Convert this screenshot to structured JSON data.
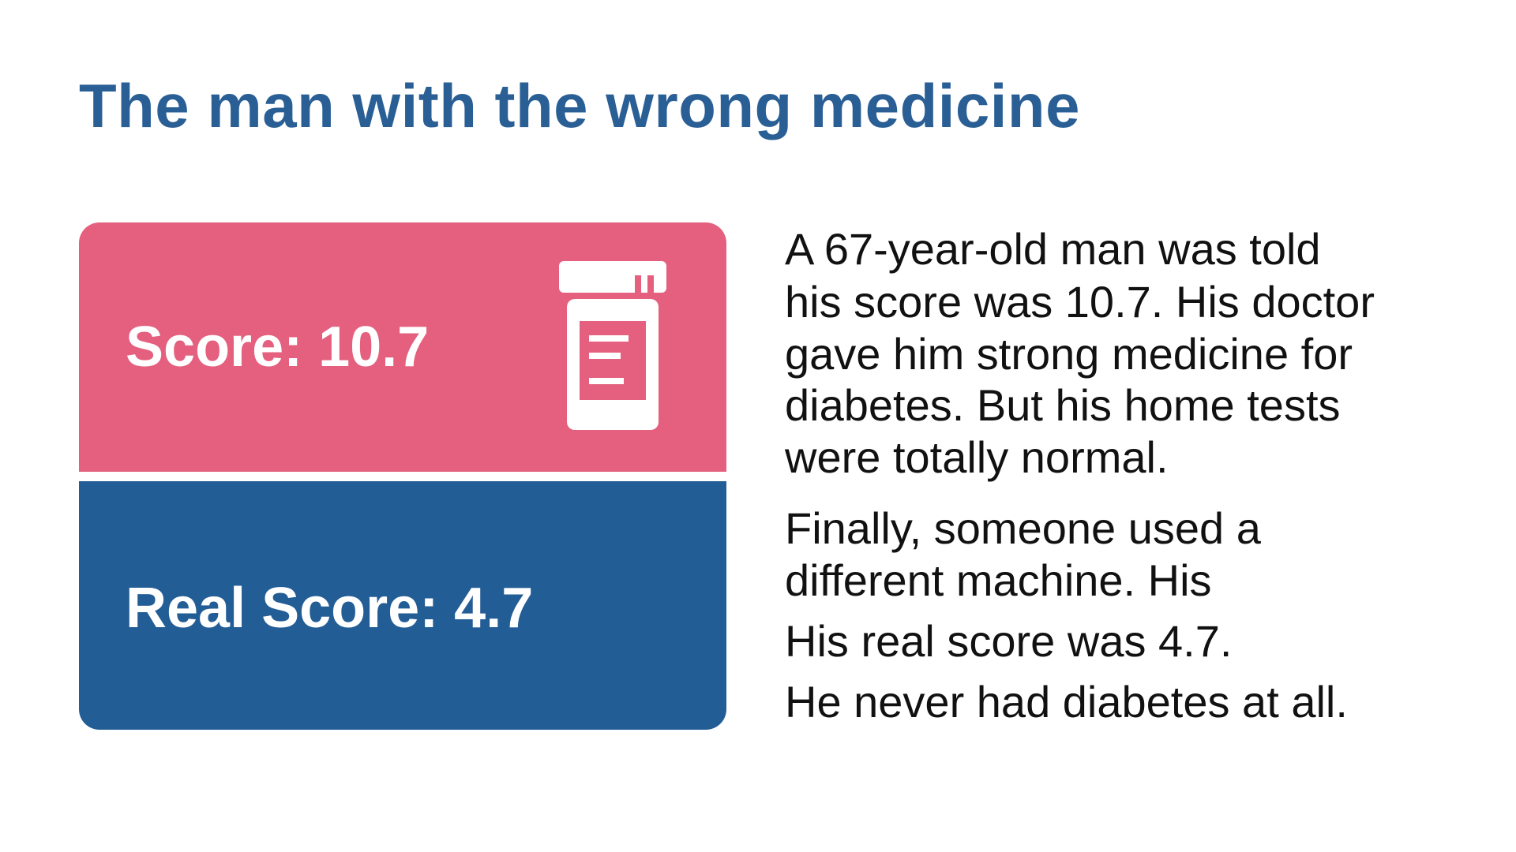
{
  "title": "The man with the wrong medicine",
  "cards": [
    {
      "label": "Score: 10.7"
    },
    {
      "label": "Real Score: 4.7"
    }
  ],
  "story": [
    {
      "lines": [
        "A 67-year-old man was told",
        "his score was 10.7. His doctor",
        "gave him strong medicine for",
        "diabetes. But his home tests",
        "were totally normal."
      ]
    },
    {
      "lines": [
        "Finally, someone used a",
        "different machine. His"
      ]
    },
    {
      "lines": [
        "His real score was 4.7."
      ]
    },
    {
      "lines": [
        "He never had diabetes at all."
      ]
    }
  ]
}
